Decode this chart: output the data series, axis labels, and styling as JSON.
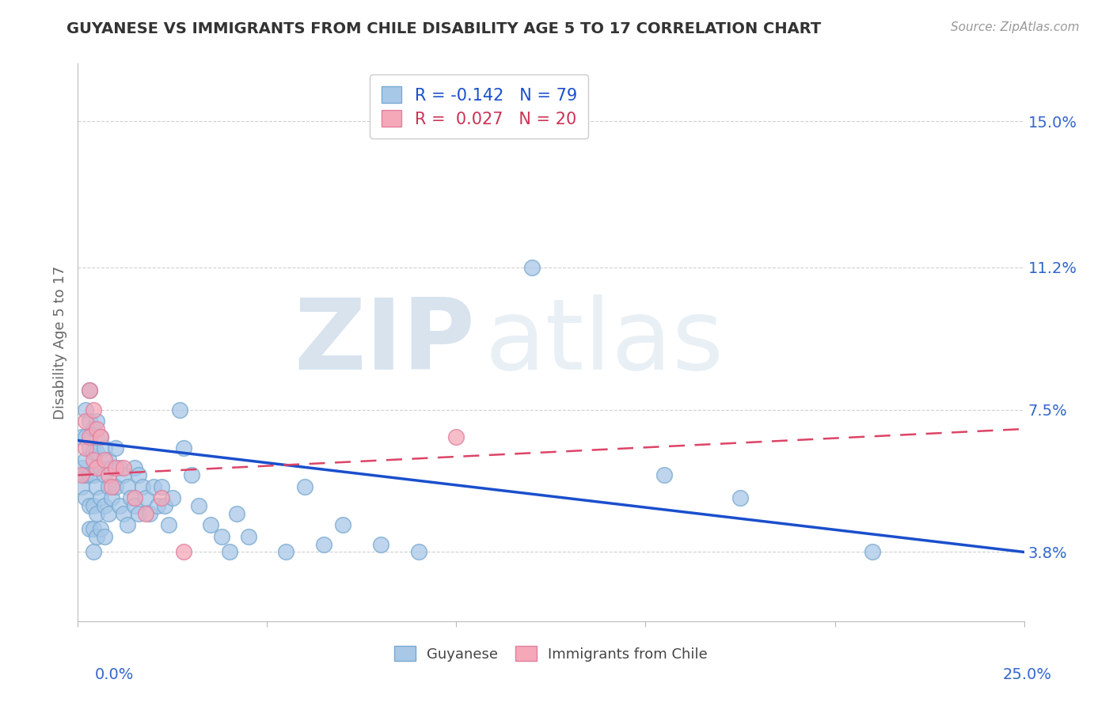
{
  "title": "GUYANESE VS IMMIGRANTS FROM CHILE DISABILITY AGE 5 TO 17 CORRELATION CHART",
  "source": "Source: ZipAtlas.com",
  "ylabel_ticks": [
    "3.8%",
    "7.5%",
    "11.2%",
    "15.0%"
  ],
  "ylabel_values": [
    0.038,
    0.075,
    0.112,
    0.15
  ],
  "xlim": [
    0.0,
    0.25
  ],
  "ylim": [
    0.02,
    0.165
  ],
  "legend_blue_r": "R = -0.142",
  "legend_blue_n": "N = 79",
  "legend_pink_r": "R =  0.027",
  "legend_pink_n": "N = 20",
  "guyanese_color": "#a8c8e8",
  "chile_color": "#f4a8b8",
  "trend_blue_color": "#1a4fcc",
  "trend_pink_color": "#dd4466",
  "watermark_zip": "ZIP",
  "watermark_atlas": "atlas",
  "guyanese_x": [
    0.001,
    0.001,
    0.001,
    0.002,
    0.002,
    0.002,
    0.002,
    0.002,
    0.003,
    0.003,
    0.003,
    0.003,
    0.003,
    0.003,
    0.004,
    0.004,
    0.004,
    0.004,
    0.004,
    0.004,
    0.005,
    0.005,
    0.005,
    0.005,
    0.005,
    0.006,
    0.006,
    0.006,
    0.006,
    0.007,
    0.007,
    0.007,
    0.007,
    0.008,
    0.008,
    0.008,
    0.009,
    0.009,
    0.01,
    0.01,
    0.011,
    0.011,
    0.012,
    0.012,
    0.013,
    0.013,
    0.014,
    0.015,
    0.015,
    0.016,
    0.016,
    0.017,
    0.018,
    0.019,
    0.02,
    0.021,
    0.022,
    0.023,
    0.024,
    0.025,
    0.027,
    0.028,
    0.03,
    0.032,
    0.035,
    0.038,
    0.04,
    0.042,
    0.045,
    0.055,
    0.06,
    0.065,
    0.07,
    0.08,
    0.09,
    0.12,
    0.155,
    0.175,
    0.21
  ],
  "guyanese_y": [
    0.068,
    0.06,
    0.055,
    0.075,
    0.068,
    0.062,
    0.058,
    0.052,
    0.08,
    0.072,
    0.065,
    0.058,
    0.05,
    0.044,
    0.07,
    0.064,
    0.058,
    0.05,
    0.044,
    0.038,
    0.072,
    0.064,
    0.055,
    0.048,
    0.042,
    0.068,
    0.06,
    0.052,
    0.044,
    0.065,
    0.058,
    0.05,
    0.042,
    0.062,
    0.055,
    0.048,
    0.06,
    0.052,
    0.065,
    0.055,
    0.06,
    0.05,
    0.058,
    0.048,
    0.055,
    0.045,
    0.052,
    0.06,
    0.05,
    0.058,
    0.048,
    0.055,
    0.052,
    0.048,
    0.055,
    0.05,
    0.055,
    0.05,
    0.045,
    0.052,
    0.075,
    0.065,
    0.058,
    0.05,
    0.045,
    0.042,
    0.038,
    0.048,
    0.042,
    0.038,
    0.055,
    0.04,
    0.045,
    0.04,
    0.038,
    0.112,
    0.058,
    0.052,
    0.038
  ],
  "chile_x": [
    0.001,
    0.002,
    0.002,
    0.003,
    0.003,
    0.004,
    0.004,
    0.005,
    0.005,
    0.006,
    0.007,
    0.008,
    0.009,
    0.01,
    0.012,
    0.015,
    0.018,
    0.022,
    0.028,
    0.1
  ],
  "chile_y": [
    0.058,
    0.072,
    0.065,
    0.08,
    0.068,
    0.075,
    0.062,
    0.07,
    0.06,
    0.068,
    0.062,
    0.058,
    0.055,
    0.06,
    0.06,
    0.052,
    0.048,
    0.052,
    0.038,
    0.068
  ],
  "trend_blue_x0": 0.0,
  "trend_blue_y0": 0.067,
  "trend_blue_x1": 0.25,
  "trend_blue_y1": 0.038,
  "trend_pink_x0": 0.0,
  "trend_pink_y0": 0.058,
  "trend_pink_x1": 0.25,
  "trend_pink_y1": 0.07
}
